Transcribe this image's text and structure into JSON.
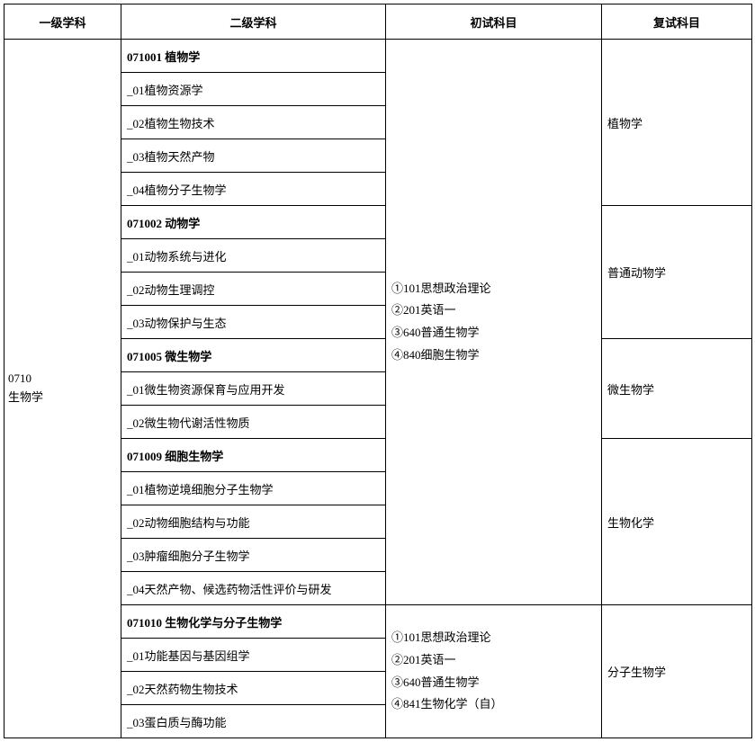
{
  "headers": {
    "col1": "一级学科",
    "col2": "二级学科",
    "col3": "初试科目",
    "col4": "复试科目"
  },
  "primary": {
    "code": "0710",
    "name": "生物学"
  },
  "groups": [
    {
      "header": "071001  植物学",
      "items": [
        "_01植物资源学",
        "_02植物生物技术",
        "_03植物天然产物",
        "_04植物分子生物学"
      ],
      "retest": "植物学"
    },
    {
      "header": "071002  动物学",
      "items": [
        "_01动物系统与进化",
        "_02动物生理调控",
        "_03动物保护与生态"
      ],
      "retest": "普通动物学"
    },
    {
      "header": "071005  微生物学",
      "items": [
        "_01微生物资源保育与应用开发",
        "_02微生物代谢活性物质"
      ],
      "retest": "微生物学"
    },
    {
      "header": "071009  细胞生物学",
      "items": [
        "_01植物逆境细胞分子生物学",
        "_02动物细胞结构与功能",
        "_03肿瘤细胞分子生物学",
        "_04天然产物、候选药物活性评价与研发"
      ],
      "retest": "生物化学"
    },
    {
      "header": "071010  生物化学与分子生物学",
      "items": [
        "_01功能基因与基因组学",
        "_02天然药物生物技术",
        "_03蛋白质与酶功能"
      ],
      "retest": "分子生物学"
    }
  ],
  "prelim1": {
    "line1": "①101思想政治理论",
    "line2": "②201英语一",
    "line3": "③640普通生物学",
    "line4": "④840细胞生物学"
  },
  "prelim2": {
    "line1": "①101思想政治理论",
    "line2": "②201英语一",
    "line3": "③640普通生物学",
    "line4": "④841生物化学（自）"
  }
}
